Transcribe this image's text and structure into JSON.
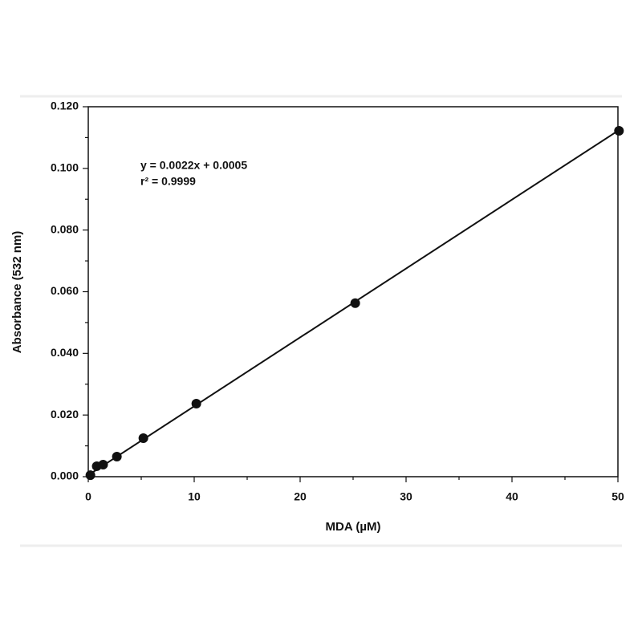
{
  "chart_data": {
    "type": "scatter",
    "x_label": "MDA (µM)",
    "y_label": "Absorbance (532 nm)",
    "annotations": [
      "y = 0.0022x + 0.0005",
      "r² = 0.9999"
    ],
    "x": [
      0.2,
      0.8,
      1.4,
      2.7,
      5.2,
      10.2,
      25.2,
      50.1
    ],
    "series": [
      {
        "color": "#111111",
        "values": [
          0.0005,
          0.0034,
          0.0039,
          0.0065,
          0.0125,
          0.0237,
          0.0563,
          0.1122
        ]
      }
    ],
    "fit_line": {
      "x": [
        0,
        50
      ],
      "values": [
        0.0005,
        0.1122
      ]
    },
    "xlim": [
      0,
      50
    ],
    "ylim": [
      0,
      0.12
    ],
    "xticks": [
      0,
      10,
      20,
      30,
      40,
      50
    ],
    "xminorticks": [
      5,
      15,
      25,
      35,
      45
    ],
    "yticks": [
      {
        "value": 0,
        "label": "0.000"
      },
      {
        "value": 0.02,
        "label": "0.020"
      },
      {
        "value": 0.04,
        "label": "0.040"
      },
      {
        "value": 0.06,
        "label": "0.060"
      },
      {
        "value": 0.08,
        "label": "0.080"
      },
      {
        "value": 0.1,
        "label": "0.100"
      },
      {
        "value": 0.12,
        "label": "0.120"
      }
    ],
    "yminorticks": [
      0.01,
      0.03,
      0.05,
      0.07,
      0.09,
      0.11
    ]
  }
}
